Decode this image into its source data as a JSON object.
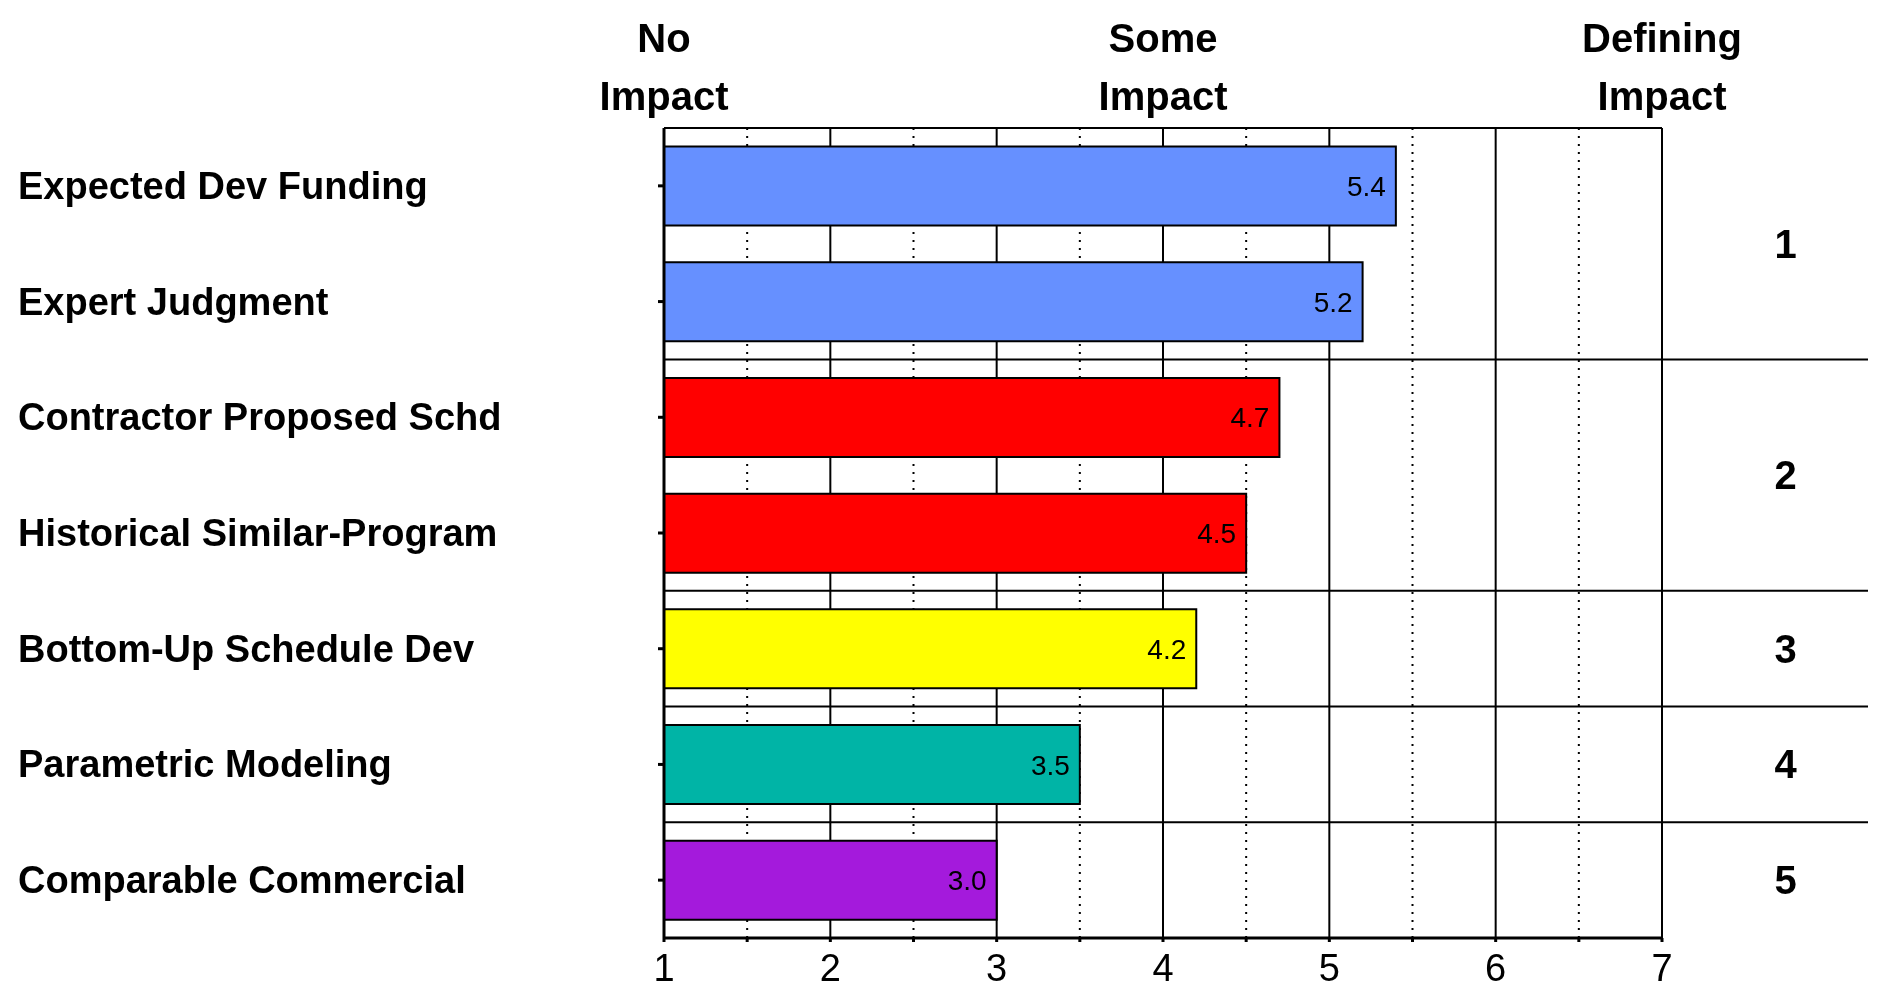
{
  "chart_data": {
    "type": "bar",
    "orientation": "horizontal",
    "categories": [
      "Expected Dev Funding",
      "Expert Judgment",
      "Contractor Proposed Schd",
      "Historical Similar-Program",
      "Bottom-Up Schedule Dev",
      "Parametric Modeling",
      "Comparable Commercial"
    ],
    "values": [
      5.4,
      5.2,
      4.7,
      4.5,
      4.2,
      3.5,
      3.0
    ],
    "value_labels": [
      "5.4",
      "5.2",
      "4.7",
      "4.5",
      "4.2",
      "3.5",
      "3.0"
    ],
    "colors": [
      "#6690ff",
      "#6690ff",
      "#ff0000",
      "#ff0000",
      "#ffff00",
      "#00b4a6",
      "#a41adc"
    ],
    "xlim": [
      1,
      7
    ],
    "xticks": [
      1,
      {
        "value": 1.5,
        "label": null
      },
      2,
      {
        "value": 2.5,
        "label": null
      },
      3,
      {
        "value": 3.5,
        "label": null
      },
      4,
      {
        "value": 4.5,
        "label": null
      },
      5,
      {
        "value": 5.5,
        "label": null
      },
      6,
      {
        "value": 6.5,
        "label": null
      },
      7
    ],
    "grid": "x",
    "annotations": [
      "No Impact",
      "Some Impact",
      "Defining Impact",
      "1",
      "2",
      "3",
      "4",
      "5"
    ]
  }
}
